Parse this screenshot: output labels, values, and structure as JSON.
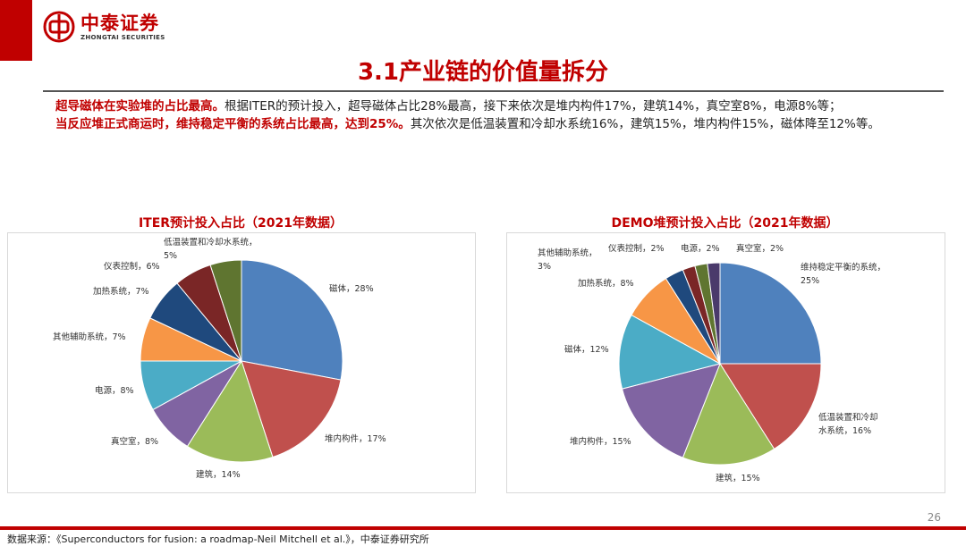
{
  "brand": {
    "name_cn": "中泰证券",
    "name_en": "ZHONGTAI SECURITIES",
    "color": "#c00000"
  },
  "slide_title": "3.1产业链的价值量拆分",
  "summary": {
    "p1_highlight": "超导磁体在实验堆的占比最高。",
    "p1_rest": "根据ITER的预计投入，超导磁体占比28%最高，接下来依次是堆内构件17%，建筑14%，真空室8%，电源8%等；",
    "p2_highlight": "当反应堆正式商运时，维持稳定平衡的系统占比最高，达到25%。",
    "p2_rest": "其次依次是低温装置和冷却水系统16%，建筑15%，堆内构件15%，磁体降至12%等。"
  },
  "chart_data": [
    {
      "type": "pie",
      "title": "ITER预计投入占比（2021年数据）",
      "slices": [
        {
          "label": "磁体",
          "value": 28,
          "color": "#4f81bd",
          "label_text": "磁体，28%"
        },
        {
          "label": "堆内构件",
          "value": 17,
          "color": "#c0504d",
          "label_text": "堆内构件，17%"
        },
        {
          "label": "建筑",
          "value": 14,
          "color": "#9bbb59",
          "label_text": "建筑，14%"
        },
        {
          "label": "真空室",
          "value": 8,
          "color": "#8064a2",
          "label_text": "真空室，8%"
        },
        {
          "label": "电源",
          "value": 8,
          "color": "#4bacc6",
          "label_text": "电源，8%"
        },
        {
          "label": "其他辅助系统",
          "value": 7,
          "color": "#f79646",
          "label_text": "其他辅助系统，7%"
        },
        {
          "label": "加热系统",
          "value": 7,
          "color": "#1f497d",
          "label_text": "加热系统，7%"
        },
        {
          "label": "仪表控制",
          "value": 6,
          "color": "#7a2626",
          "label_text": "仪表控制，6%"
        },
        {
          "label": "低温装置和冷却水系统",
          "value": 5,
          "color": "#5f7530",
          "label_text": "低温装置和冷却水系统，5%"
        }
      ]
    },
    {
      "type": "pie",
      "title": "DEMO堆预计投入占比（2021年数据）",
      "slices": [
        {
          "label": "维持稳定平衡的系统",
          "value": 25,
          "color": "#4f81bd",
          "label_text": "维持稳定平衡的系统，25%"
        },
        {
          "label": "低温装置和冷却水系统",
          "value": 16,
          "color": "#c0504d",
          "label_text": "低温装置和冷却水系统，16%"
        },
        {
          "label": "建筑",
          "value": 15,
          "color": "#9bbb59",
          "label_text": "建筑，15%"
        },
        {
          "label": "堆内构件",
          "value": 15,
          "color": "#8064a2",
          "label_text": "堆内构件，15%"
        },
        {
          "label": "磁体",
          "value": 12,
          "color": "#4bacc6",
          "label_text": "磁体，12%"
        },
        {
          "label": "加热系统",
          "value": 8,
          "color": "#f79646",
          "label_text": "加热系统，8%"
        },
        {
          "label": "其他辅助系统",
          "value": 3,
          "color": "#1f497d",
          "label_text": "其他辅助系统，3%"
        },
        {
          "label": "仪表控制",
          "value": 2,
          "color": "#7a2626",
          "label_text": "仪表控制，2%"
        },
        {
          "label": "电源",
          "value": 2,
          "color": "#5f7530",
          "label_text": "电源，2%"
        },
        {
          "label": "真空室",
          "value": 2,
          "color": "#4a3a6b",
          "label_text": "真空室，2%"
        }
      ]
    }
  ],
  "page_number": "26",
  "source": "数据来源：《Superconductors for fusion: a roadmap-Neil Mitchell et al.》，中泰证券研究所"
}
